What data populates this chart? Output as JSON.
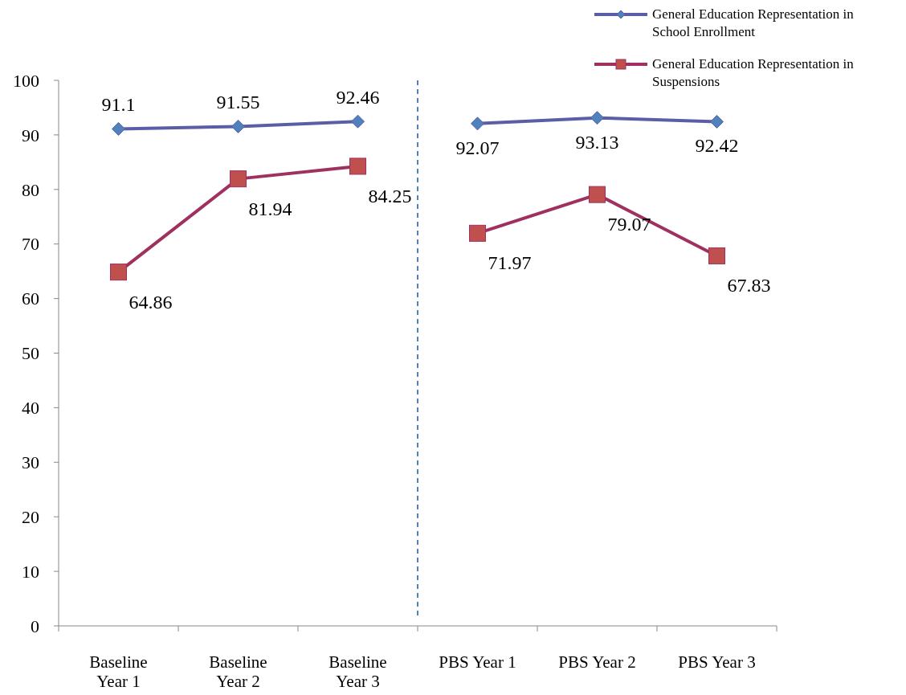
{
  "chart_data": {
    "type": "line",
    "categories": [
      "Baseline Year 1",
      "Baseline Year 2",
      "Baseline Year 3",
      "PBS Year 1",
      "PBS Year 2",
      "PBS Year 3"
    ],
    "series": [
      {
        "name": "General Education Representation in School Enrollment",
        "color": "#5b5ea6",
        "marker": "diamond",
        "values": [
          91.1,
          91.55,
          92.46,
          92.07,
          93.13,
          92.42
        ]
      },
      {
        "name": "General Education Representation in Suspensions",
        "color": "#a0305f",
        "marker": "square",
        "values": [
          64.86,
          81.94,
          84.25,
          71.97,
          79.07,
          67.83
        ]
      }
    ],
    "ylim": [
      0,
      100
    ],
    "yticks": [
      0,
      10,
      20,
      30,
      40,
      50,
      60,
      70,
      80,
      90,
      100
    ],
    "data_labels": true,
    "legend": "top right",
    "grid": false
  }
}
